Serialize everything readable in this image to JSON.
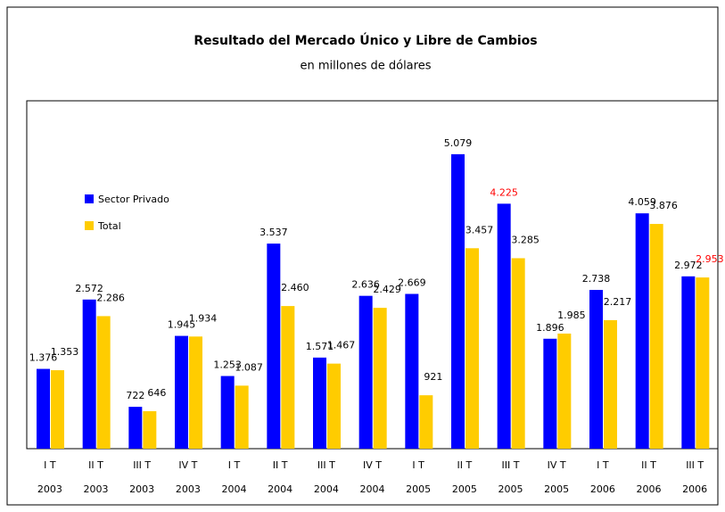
{
  "chart_data": {
    "type": "bar",
    "title": "Resultado del Mercado Único y Libre de Cambios",
    "subtitle": "en millones de dólares",
    "categories": [
      [
        "I T",
        "2003"
      ],
      [
        "II T",
        "2003"
      ],
      [
        "III T",
        "2003"
      ],
      [
        "IV T",
        "2003"
      ],
      [
        "I T",
        "2004"
      ],
      [
        "II T",
        "2004"
      ],
      [
        "III T",
        "2004"
      ],
      [
        "IV T",
        "2004"
      ],
      [
        "I T",
        "2005"
      ],
      [
        "II T",
        "2005"
      ],
      [
        "III T",
        "2005"
      ],
      [
        "IV T",
        "2005"
      ],
      [
        "I T",
        "2006"
      ],
      [
        "II T",
        "2006"
      ],
      [
        "III T",
        "2006"
      ]
    ],
    "ylim": [
      0,
      6000
    ],
    "series": [
      {
        "name": "Sector Privado",
        "color": "#0000ff",
        "values": [
          1376,
          2572,
          722,
          1945,
          1253,
          3537,
          1571,
          2636,
          2669,
          5079,
          4225,
          1896,
          2738,
          4059,
          2972
        ],
        "value_labels": [
          "1.376",
          "2.572",
          "722",
          "1.945",
          "1.253",
          "3.537",
          "1.571",
          "2.636",
          "2.669",
          "5.079",
          "4.225",
          "1.896",
          "2.738",
          "4.059",
          "2.972"
        ],
        "value_label_colors": [
          "#000",
          "#000",
          "#000",
          "#000",
          "#000",
          "#000",
          "#000",
          "#000",
          "#000",
          "#000",
          "#ff0000",
          "#000",
          "#000",
          "#000",
          "#000"
        ]
      },
      {
        "name": "Total",
        "color": "#ffcc00",
        "values": [
          1353,
          2286,
          646,
          1934,
          1087,
          2460,
          1467,
          2429,
          921,
          3457,
          3285,
          1985,
          2217,
          3876,
          2953
        ],
        "value_labels": [
          "1.353",
          "2.286",
          "646",
          "1.934",
          "1.087",
          "2.460",
          "1.467",
          "2.429",
          "921",
          "3.457",
          "3.285",
          "1.985",
          "2.217",
          "3.876",
          "2.953"
        ],
        "value_label_colors": [
          "#000",
          "#000",
          "#000",
          "#000",
          "#000",
          "#000",
          "#000",
          "#000",
          "#000",
          "#000",
          "#000",
          "#000",
          "#000",
          "#000",
          "#ff0000"
        ]
      }
    ]
  }
}
